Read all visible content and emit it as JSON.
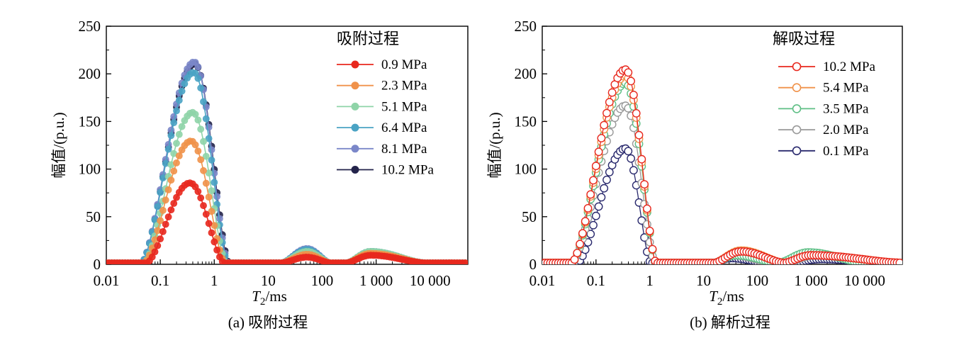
{
  "chart_data": [
    {
      "type": "line",
      "panel": "a",
      "caption": "(a) 吸附过程",
      "xlabel_main": "T",
      "xlabel_sub": "2",
      "xlabel_unit": "/ms",
      "ylabel": "幅值/(p.u.)",
      "xscale": "log",
      "xlim": [
        0.01,
        50000
      ],
      "ylim": [
        0,
        250
      ],
      "xticks": [
        {
          "value": 0.01,
          "label": "0.01"
        },
        {
          "value": 0.1,
          "label": "0.1"
        },
        {
          "value": 1,
          "label": "1"
        },
        {
          "value": 10,
          "label": "10"
        },
        {
          "value": 100,
          "label": "100"
        },
        {
          "value": 1000,
          "label": "1 000"
        },
        {
          "value": 10000,
          "label": "10 000"
        }
      ],
      "yticks": [
        {
          "value": 0,
          "label": "0"
        },
        {
          "value": 50,
          "label": "50"
        },
        {
          "value": 100,
          "label": "100"
        },
        {
          "value": 150,
          "label": "150"
        },
        {
          "value": 200,
          "label": "200"
        },
        {
          "value": 250,
          "label": "250"
        }
      ],
      "marker": "filled",
      "legend_title": "吸附过程",
      "legend_position": "top-right",
      "series": [
        {
          "name": "0.9 MPa",
          "color": "#e8281e",
          "peaks": [
            {
              "center_log": -0.45,
              "amp": 84,
              "lo": -1.25,
              "hi": 0.18
            },
            {
              "center_log": 1.72,
              "amp": 6,
              "lo": 1.25,
              "hi": 2.15
            },
            {
              "center_log": 2.9,
              "amp": 8,
              "lo": 2.45,
              "hi": 3.9
            }
          ]
        },
        {
          "name": "2.3 MPa",
          "color": "#f0924a",
          "peaks": [
            {
              "center_log": -0.43,
              "amp": 128,
              "lo": -1.3,
              "hi": 0.2
            },
            {
              "center_log": 1.72,
              "amp": 9,
              "lo": 1.25,
              "hi": 2.15
            },
            {
              "center_log": 2.9,
              "amp": 10,
              "lo": 2.45,
              "hi": 3.9
            }
          ]
        },
        {
          "name": "5.1 MPa",
          "color": "#8fd4a8",
          "peaks": [
            {
              "center_log": -0.4,
              "amp": 158,
              "lo": -1.3,
              "hi": 0.22
            },
            {
              "center_log": 1.72,
              "amp": 12,
              "lo": 1.25,
              "hi": 2.15
            },
            {
              "center_log": 2.9,
              "amp": 12,
              "lo": 2.45,
              "hi": 3.9
            }
          ]
        },
        {
          "name": "6.4 MPa",
          "color": "#4aa3c4",
          "peaks": [
            {
              "center_log": -0.38,
              "amp": 200,
              "lo": -1.35,
              "hi": 0.25
            },
            {
              "center_log": 1.72,
              "amp": 14,
              "lo": 1.25,
              "hi": 2.15
            },
            {
              "center_log": 2.9,
              "amp": 12,
              "lo": 2.45,
              "hi": 3.9
            }
          ]
        },
        {
          "name": "8.1 MPa",
          "color": "#7b87c9",
          "peaks": [
            {
              "center_log": -0.37,
              "amp": 211,
              "lo": -1.35,
              "hi": 0.26
            },
            {
              "center_log": 1.72,
              "amp": 15,
              "lo": 1.25,
              "hi": 2.15
            },
            {
              "center_log": 2.9,
              "amp": 12,
              "lo": 2.45,
              "hi": 3.9
            }
          ]
        },
        {
          "name": "10.2 MPa",
          "color": "#23234a",
          "peaks": [
            {
              "center_log": -0.36,
              "amp": 209,
              "lo": -1.35,
              "hi": 0.27
            },
            {
              "center_log": 1.72,
              "amp": 14,
              "lo": 1.25,
              "hi": 2.15
            },
            {
              "center_log": 2.9,
              "amp": 11,
              "lo": 2.45,
              "hi": 3.9
            }
          ]
        }
      ]
    },
    {
      "type": "line",
      "panel": "b",
      "caption": "(b) 解析过程",
      "xlabel_main": "T",
      "xlabel_sub": "2",
      "xlabel_unit": "/ms",
      "ylabel": "幅值/(p.u.)",
      "xscale": "log",
      "xlim": [
        0.01,
        50000
      ],
      "ylim": [
        0,
        250
      ],
      "xticks": [
        {
          "value": 0.01,
          "label": "0.01"
        },
        {
          "value": 0.1,
          "label": "0.1"
        },
        {
          "value": 1,
          "label": "1"
        },
        {
          "value": 10,
          "label": "10"
        },
        {
          "value": 100,
          "label": "100"
        },
        {
          "value": 1000,
          "label": "1 000"
        },
        {
          "value": 10000,
          "label": "10 000"
        }
      ],
      "yticks": [
        {
          "value": 0,
          "label": "0"
        },
        {
          "value": 50,
          "label": "50"
        },
        {
          "value": 100,
          "label": "100"
        },
        {
          "value": 150,
          "label": "150"
        },
        {
          "value": 200,
          "label": "200"
        },
        {
          "value": 250,
          "label": "250"
        }
      ],
      "marker": "open",
      "legend_title": "解吸过程",
      "legend_position": "top-right",
      "series": [
        {
          "name": "10.2 MPa",
          "color": "#e8281e",
          "peaks": [
            {
              "center_log": -0.45,
              "amp": 203,
              "lo": -1.45,
              "hi": 0.12
            },
            {
              "center_log": 1.7,
              "amp": 12,
              "lo": 1.2,
              "hi": 2.5
            },
            {
              "center_log": 3.0,
              "amp": 8,
              "lo": 2.5,
              "hi": 4.7
            }
          ]
        },
        {
          "name": "5.4 MPa",
          "color": "#f0924a",
          "peaks": [
            {
              "center_log": -0.45,
              "amp": 197,
              "lo": -1.45,
              "hi": 0.12
            },
            {
              "center_log": 1.7,
              "amp": 13,
              "lo": 1.2,
              "hi": 2.5
            },
            {
              "center_log": 3.0,
              "amp": 8,
              "lo": 2.5,
              "hi": 4.7
            }
          ]
        },
        {
          "name": "3.5 MPa",
          "color": "#5fbf86",
          "peaks": [
            {
              "center_log": -0.45,
              "amp": 189,
              "lo": -1.45,
              "hi": 0.12
            },
            {
              "center_log": 1.6,
              "amp": 8,
              "lo": 1.2,
              "hi": 2.4
            },
            {
              "center_log": 2.95,
              "amp": 11,
              "lo": 2.4,
              "hi": 4.0
            }
          ]
        },
        {
          "name": "2.0 MPa",
          "color": "#999999",
          "peaks": [
            {
              "center_log": -0.45,
              "amp": 165,
              "lo": -1.45,
              "hi": 0.1
            },
            {
              "center_log": 1.55,
              "amp": 8,
              "lo": 1.2,
              "hi": 2.3
            },
            {
              "center_log": 3.1,
              "amp": 8,
              "lo": 2.5,
              "hi": 4.2
            }
          ]
        },
        {
          "name": "0.1 MPa",
          "color": "#2a2a6e",
          "peaks": [
            {
              "center_log": -0.45,
              "amp": 120,
              "lo": -1.35,
              "hi": 0.02
            },
            {
              "center_log": 1.5,
              "amp": 5,
              "lo": 1.2,
              "hi": 2.2
            },
            {
              "center_log": 3.2,
              "amp": 4,
              "lo": 2.6,
              "hi": 4.3
            }
          ]
        }
      ]
    }
  ]
}
